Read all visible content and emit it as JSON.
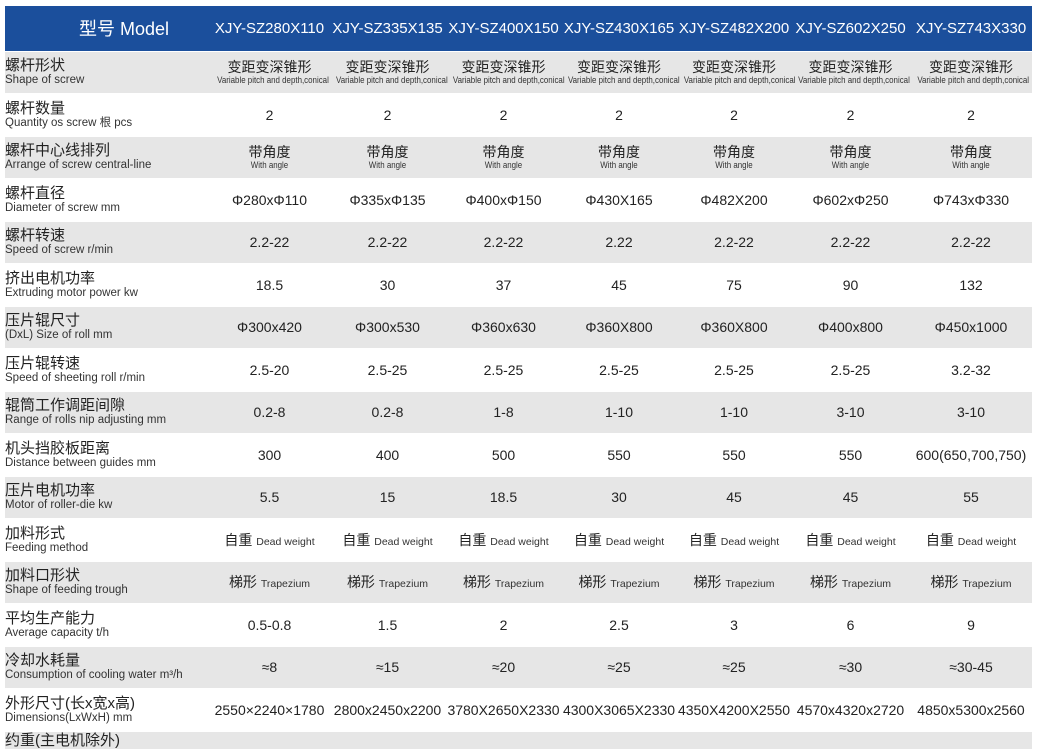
{
  "header": {
    "label": "型号 Model",
    "models": [
      "XJY-SZ280X110",
      "XJY-SZ335X135",
      "XJY-SZ400X150",
      "XJY-SZ430X165",
      "XJY-SZ482X200",
      "XJY-SZ602X250",
      "XJY-SZ743X330"
    ]
  },
  "rows": [
    {
      "cn": "螺杆形状",
      "en": "Shape of screw",
      "mode": "stack",
      "values": [
        {
          "cn": "变距变深锥形",
          "en": "Variable pitch and depth,conical"
        },
        {
          "cn": "变距变深锥形",
          "en": "Variable pitch and depth,conical"
        },
        {
          "cn": "变距变深锥形",
          "en": "Variable pitch and depth,conical"
        },
        {
          "cn": "变距变深锥形",
          "en": "Variable pitch and depth,conical"
        },
        {
          "cn": "变距变深锥形",
          "en": "Variable pitch and depth,conical"
        },
        {
          "cn": "变距变深锥形",
          "en": "Variable pitch and depth,conical"
        },
        {
          "cn": "变距变深锥形",
          "en": "Variable pitch and depth,conical"
        }
      ]
    },
    {
      "cn": "螺杆数量",
      "en": "Quantity os screw 根 pcs",
      "mode": "text",
      "values": [
        "2",
        "2",
        "2",
        "2",
        "2",
        "2",
        "2"
      ]
    },
    {
      "cn": "螺杆中心线排列",
      "en": "Arrange of screw central-line",
      "mode": "stack",
      "values": [
        {
          "cn": "带角度",
          "en": "With angle"
        },
        {
          "cn": "带角度",
          "en": "With angle"
        },
        {
          "cn": "带角度",
          "en": "With angle"
        },
        {
          "cn": "带角度",
          "en": "With angle"
        },
        {
          "cn": "带角度",
          "en": "With angle"
        },
        {
          "cn": "带角度",
          "en": "With angle"
        },
        {
          "cn": "带角度",
          "en": "With angle"
        }
      ]
    },
    {
      "cn": "螺杆直径",
      "en": "Diameter of screw mm",
      "mode": "text",
      "values": [
        "Φ280xΦ110",
        "Φ335xΦ135",
        "Φ400xΦ150",
        "Φ430X165",
        "Φ482X200",
        "Φ602xΦ250",
        "Φ743xΦ330"
      ]
    },
    {
      "cn": "螺杆转速",
      "en": "Speed of screw r/min",
      "mode": "text",
      "values": [
        "2.2-22",
        "2.2-22",
        "2.2-22",
        "2.22",
        "2.2-22",
        "2.2-22",
        "2.2-22"
      ]
    },
    {
      "cn": "挤出电机功率",
      "en": "Extruding motor power kw",
      "mode": "text",
      "values": [
        "18.5",
        "30",
        "37",
        "45",
        "75",
        "90",
        "132"
      ]
    },
    {
      "cn": "压片辊尺寸",
      "en": "(DxL) Size of roll mm",
      "mode": "text",
      "values": [
        "Φ300x420",
        "Φ300x530",
        "Φ360x630",
        "Φ360X800",
        "Φ360X800",
        "Φ400x800",
        "Φ450x1000"
      ]
    },
    {
      "cn": "压片辊转速",
      "en": "Speed of sheeting roll r/min",
      "mode": "text",
      "values": [
        "2.5-20",
        "2.5-25",
        "2.5-25",
        "2.5-25",
        "2.5-25",
        "2.5-25",
        "3.2-32"
      ]
    },
    {
      "cn": "辊筒工作调距间隙",
      "en": "Range of rolls nip adjusting mm",
      "mode": "text",
      "values": [
        "0.2-8",
        "0.2-8",
        "1-8",
        "1-10",
        "1-10",
        "3-10",
        "3-10"
      ]
    },
    {
      "cn": "机头挡胶板距离",
      "en": "Distance between guides mm",
      "mode": "text",
      "values": [
        "300",
        "400",
        "500",
        "550",
        "550",
        "550",
        "600(650,700,750)"
      ]
    },
    {
      "cn": "压片电机功率",
      "en": "Motor of roller-die kw",
      "mode": "text",
      "values": [
        "5.5",
        "15",
        "18.5",
        "30",
        "45",
        "45",
        "55"
      ]
    },
    {
      "cn": "加料形式",
      "en": "Feeding method",
      "mode": "inline",
      "values": [
        {
          "cn": "自重",
          "en": "Dead weight"
        },
        {
          "cn": "自重",
          "en": "Dead weight"
        },
        {
          "cn": "自重",
          "en": "Dead weight"
        },
        {
          "cn": "自重",
          "en": "Dead weight"
        },
        {
          "cn": "自重",
          "en": "Dead weight"
        },
        {
          "cn": "自重",
          "en": "Dead weight"
        },
        {
          "cn": "自重",
          "en": "Dead weight"
        }
      ]
    },
    {
      "cn": "加料口形状",
      "en": "Shape of feeding trough",
      "mode": "inline",
      "values": [
        {
          "cn": "梯形",
          "en": "Trapezium"
        },
        {
          "cn": "梯形",
          "en": "Trapezium"
        },
        {
          "cn": "梯形",
          "en": "Trapezium"
        },
        {
          "cn": "梯形",
          "en": "Trapezium"
        },
        {
          "cn": "梯形",
          "en": "Trapezium"
        },
        {
          "cn": "梯形",
          "en": "Trapezium"
        },
        {
          "cn": "梯形",
          "en": "Trapezium"
        }
      ]
    },
    {
      "cn": "平均生产能力",
      "en": "Average capacity t/h",
      "mode": "text",
      "values": [
        "0.5-0.8",
        "1.5",
        "2",
        "2.5",
        "3",
        "6",
        "9"
      ]
    },
    {
      "cn": "冷却水耗量",
      "en": "Consumption of cooling water m³/h",
      "mode": "text",
      "values": [
        "≈8",
        "≈15",
        "≈20",
        "≈25",
        "≈25",
        "≈30",
        "≈30-45"
      ]
    },
    {
      "cn": "外形尺寸(长x宽x高)",
      "en": "Dimensions(LxWxH) mm",
      "mode": "text",
      "values": [
        "2550×2240×1780",
        "2800x2450x2200",
        "3780X2650X2330",
        "4300X3065X2330",
        "4350X4200X2550",
        "4570x4320x2720",
        "4850x5300x2560"
      ]
    },
    {
      "cn": "约重(主电机除外)",
      "en": "",
      "mode": "text",
      "values": [
        "",
        "",
        "",
        "",
        "",
        "",
        ""
      ]
    }
  ]
}
